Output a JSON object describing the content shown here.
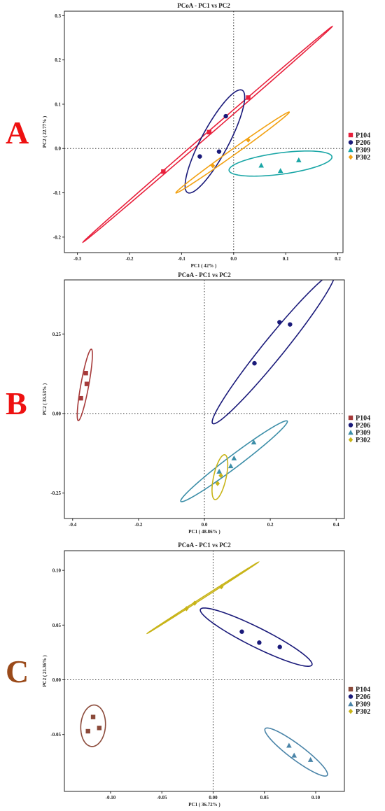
{
  "chart_data": [
    {
      "type": "scatter",
      "panel": "A",
      "title": "PCoA - PC1 vs PC2",
      "xlabel": "PC1 ( 42% )",
      "ylabel": "PC2 ( 22.77% )",
      "xlim": [
        -0.325,
        0.21
      ],
      "ylim": [
        -0.235,
        0.31
      ],
      "xticks": [
        -0.3,
        -0.2,
        -0.1,
        0.0,
        0.1,
        0.2
      ],
      "xtick_labels": [
        "-0.3",
        "-0.2",
        "-0.1",
        "0.0",
        "0.1",
        "0.2"
      ],
      "yticks": [
        -0.2,
        -0.1,
        0.0,
        0.1,
        0.2,
        0.3
      ],
      "ytick_labels": [
        "-0.2",
        "-0.1",
        "0.0",
        "0.1",
        "0.2",
        "0.3"
      ],
      "grid": false,
      "legend_position": "right",
      "series": [
        {
          "name": "P104",
          "color": "#e8203c",
          "marker": "square",
          "points": [
            [
              -0.135,
              -0.052
            ],
            [
              -0.047,
              0.037
            ],
            [
              0.028,
              0.115
            ]
          ],
          "ellipse": {
            "center": [
              -0.05,
              0.032
            ],
            "rx": 0.341,
            "ry": 0.0035,
            "angle_deg": 45.5
          }
        },
        {
          "name": "P206",
          "color": "#1a1a7a",
          "marker": "circle",
          "points": [
            [
              -0.065,
              -0.018
            ],
            [
              -0.028,
              -0.007
            ],
            [
              -0.015,
              0.073
            ]
          ],
          "ellipse": {
            "center": [
              -0.036,
              0.016
            ],
            "rx": 0.127,
            "ry": 0.027,
            "angle_deg": 66
          }
        },
        {
          "name": "P309",
          "color": "#1aa6a6",
          "marker": "triangle",
          "points": [
            [
              0.053,
              -0.038
            ],
            [
              0.09,
              -0.05
            ],
            [
              0.125,
              -0.026
            ]
          ],
          "ellipse": {
            "center": [
              0.09,
              -0.034
            ],
            "rx": 0.1,
            "ry": 0.024,
            "angle_deg": 9
          }
        },
        {
          "name": "P302",
          "color": "#f2a112",
          "marker": "diamond",
          "points": [
            [
              -0.04,
              -0.039
            ],
            [
              0.028,
              0.019
            ]
          ],
          "ellipse": {
            "center": [
              -0.002,
              -0.009
            ],
            "rx": 0.142,
            "ry": 0.006,
            "angle_deg": 40
          }
        }
      ]
    },
    {
      "type": "scatter",
      "panel": "B",
      "title": "PCoA - PC1 vs PC2",
      "xlabel": "PC1 ( 48.86% )",
      "ylabel": "PC2 ( 33.53% )",
      "xlim": [
        -0.425,
        0.425
      ],
      "ylim": [
        -0.33,
        0.42
      ],
      "xticks": [
        -0.4,
        -0.2,
        0.0,
        0.2,
        0.4
      ],
      "xtick_labels": [
        "-0.4",
        "-0.2",
        "0.0",
        "0.2",
        "0.4"
      ],
      "yticks": [
        -0.25,
        0.0,
        0.25
      ],
      "ytick_labels": [
        "-0.25",
        "0.00",
        "0.25"
      ],
      "grid": false,
      "legend_position": "right",
      "series": [
        {
          "name": "P104",
          "color": "#a63a3a",
          "marker": "square",
          "points": [
            [
              -0.375,
              0.048
            ],
            [
              -0.36,
              0.127
            ],
            [
              -0.357,
              0.093
            ]
          ],
          "ellipse": {
            "center": [
              -0.363,
              0.09
            ],
            "rx": 0.114,
            "ry": 0.012,
            "angle_deg": 80
          }
        },
        {
          "name": "P206",
          "color": "#1a1a7a",
          "marker": "circle",
          "points": [
            [
              0.152,
              0.158
            ],
            [
              0.228,
              0.287
            ],
            [
              0.26,
              0.28
            ]
          ],
          "ellipse": {
            "center": [
              0.21,
              0.205
            ],
            "rx": 0.3,
            "ry": 0.032,
            "angle_deg": 52
          }
        },
        {
          "name": "P309",
          "color": "#3c8ea8",
          "marker": "triangle",
          "points": [
            [
              0.045,
              -0.182
            ],
            [
              0.08,
              -0.165
            ],
            [
              0.09,
              -0.14
            ],
            [
              0.15,
              -0.09
            ]
          ],
          "ellipse": {
            "center": [
              0.09,
              -0.15
            ],
            "rx": 0.205,
            "ry": 0.019,
            "angle_deg": 38
          }
        },
        {
          "name": "P302",
          "color": "#c8b418",
          "marker": "diamond",
          "points": [
            [
              0.04,
              -0.22
            ],
            [
              0.05,
              -0.195
            ]
          ],
          "ellipse": {
            "center": [
              0.047,
              -0.2
            ],
            "rx": 0.072,
            "ry": 0.019,
            "angle_deg": 78
          }
        }
      ]
    },
    {
      "type": "scatter",
      "panel": "C",
      "title": "PCoA - PC1 vs PC2",
      "xlabel": "PC1 ( 36.72% )",
      "ylabel": "PC2 ( 21.36% )",
      "xlim": [
        -0.145,
        0.128
      ],
      "ylim": [
        -0.102,
        0.118
      ],
      "xticks": [
        -0.1,
        -0.05,
        0.0,
        0.05,
        0.1
      ],
      "xtick_labels": [
        "-0.10",
        "-0.05",
        "0.00",
        "0.05",
        "0.10"
      ],
      "yticks": [
        -0.05,
        0.0,
        0.05,
        0.1
      ],
      "ytick_labels": [
        "-0.05",
        "0.00",
        "0.05",
        "0.10"
      ],
      "grid": false,
      "legend_position": "right",
      "series": [
        {
          "name": "P104",
          "color": "#8b4a3a",
          "marker": "square",
          "points": [
            [
              -0.122,
              -0.047
            ],
            [
              -0.117,
              -0.034
            ],
            [
              -0.111,
              -0.044
            ]
          ],
          "ellipse": {
            "center": [
              -0.117,
              -0.042
            ],
            "rx": 0.019,
            "ry": 0.012,
            "angle_deg": 85
          }
        },
        {
          "name": "P206",
          "color": "#1a1a7a",
          "marker": "circle",
          "points": [
            [
              0.028,
              0.044
            ],
            [
              0.045,
              0.034
            ],
            [
              0.065,
              0.03
            ]
          ],
          "ellipse": {
            "center": [
              0.042,
              0.039
            ],
            "rx": 0.06,
            "ry": 0.009,
            "angle_deg": -25
          }
        },
        {
          "name": "P309",
          "color": "#4a84a8",
          "marker": "triangle",
          "points": [
            [
              0.074,
              -0.06
            ],
            [
              0.079,
              -0.069
            ],
            [
              0.095,
              -0.073
            ]
          ],
          "ellipse": {
            "center": [
              0.081,
              -0.066
            ],
            "rx": 0.037,
            "ry": 0.007,
            "angle_deg": -35
          }
        },
        {
          "name": "P302",
          "color": "#c8b418",
          "marker": "diamond",
          "points": [
            [
              -0.026,
              0.065
            ],
            [
              -0.018,
              0.07
            ],
            [
              0.008,
              0.085
            ]
          ],
          "ellipse": {
            "center": [
              -0.01,
              0.075
            ],
            "rx": 0.063,
            "ry": 0.0006,
            "angle_deg": 31
          }
        }
      ]
    }
  ]
}
